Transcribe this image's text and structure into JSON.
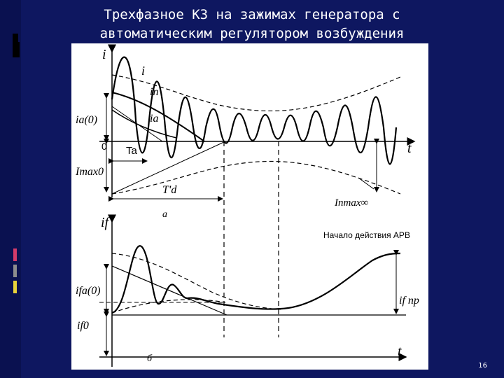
{
  "slide": {
    "title_line1": "Трехфазное КЗ на зажимах генератора с",
    "title_line2": "автоматическим регулятором возбуждения",
    "number": "16"
  },
  "diagram": {
    "top": {
      "axis_y": "i",
      "axis_x": "t",
      "zero": "0",
      "curve_i": "i",
      "curve_in": "iп",
      "curve_ia": "ia",
      "ia0": "ia(0)",
      "Imax0": "Imax0",
      "Ta": "Ta",
      "Td": "T'd",
      "Inmax": "Iпmax∞",
      "caption": "a"
    },
    "bottom": {
      "axis_y": "if",
      "axis_x": "t",
      "arv": "Начало действия АРВ",
      "ifa0": "ifa(0)",
      "if0": "if0",
      "ifpr": "if пр",
      "caption": "б"
    }
  }
}
